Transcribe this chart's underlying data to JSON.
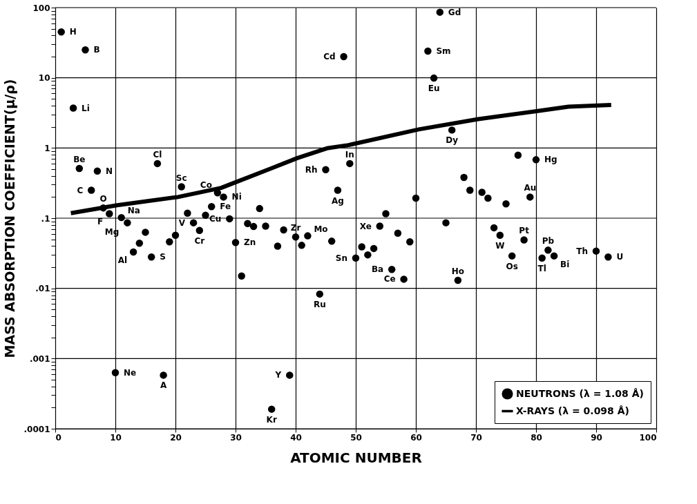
{
  "chart_data": {
    "type": "scatter",
    "xlabel": "ATOMIC NUMBER",
    "ylabel": "MASS ABSORPTION COEFFICIENT(μ/ρ)",
    "log": "y",
    "grid": true,
    "legend": "bottom right",
    "xlim": [
      0,
      100
    ],
    "xticks": [
      0,
      10,
      20,
      30,
      40,
      50,
      60,
      70,
      80,
      90,
      100
    ],
    "ylim": [
      0.0001,
      100
    ],
    "yticks": [
      {
        "value": 0.0001,
        "label": ".0001"
      },
      {
        "value": 0.0002,
        "label": null
      },
      {
        "value": 0.0003,
        "label": null
      },
      {
        "value": 0.0004,
        "label": null
      },
      {
        "value": 0.0005,
        "label": null
      },
      {
        "value": 0.0006,
        "label": null
      },
      {
        "value": 0.0007,
        "label": null
      },
      {
        "value": 0.0008,
        "label": null
      },
      {
        "value": 0.0009,
        "label": null
      },
      {
        "value": 0.001,
        "label": ".001"
      },
      {
        "value": 0.002,
        "label": null
      },
      {
        "value": 0.003,
        "label": null
      },
      {
        "value": 0.004,
        "label": null
      },
      {
        "value": 0.005,
        "label": null
      },
      {
        "value": 0.006,
        "label": null
      },
      {
        "value": 0.007,
        "label": null
      },
      {
        "value": 0.008,
        "label": null
      },
      {
        "value": 0.009,
        "label": null
      },
      {
        "value": 0.01,
        "label": ".01"
      },
      {
        "value": 0.02,
        "label": null
      },
      {
        "value": 0.03,
        "label": null
      },
      {
        "value": 0.04,
        "label": null
      },
      {
        "value": 0.05,
        "label": null
      },
      {
        "value": 0.06,
        "label": null
      },
      {
        "value": 0.07,
        "label": null
      },
      {
        "value": 0.08,
        "label": null
      },
      {
        "value": 0.09,
        "label": null
      },
      {
        "value": 0.1,
        "label": ".1"
      },
      {
        "value": 0.2,
        "label": null
      },
      {
        "value": 0.3,
        "label": null
      },
      {
        "value": 0.4,
        "label": null
      },
      {
        "value": 0.5,
        "label": null
      },
      {
        "value": 0.6,
        "label": null
      },
      {
        "value": 0.7,
        "label": null
      },
      {
        "value": 0.8,
        "label": null
      },
      {
        "value": 0.9,
        "label": null
      },
      1,
      {
        "value": 2,
        "label": null
      },
      {
        "value": 3,
        "label": null
      },
      {
        "value": 4,
        "label": null
      },
      {
        "value": 5,
        "label": null
      },
      {
        "value": 6,
        "label": null
      },
      {
        "value": 7,
        "label": null
      },
      {
        "value": 8,
        "label": null
      },
      {
        "value": 9,
        "label": null
      },
      10,
      {
        "value": 20,
        "label": null
      },
      {
        "value": 30,
        "label": null
      },
      {
        "value": 40,
        "label": null
      },
      {
        "value": 50,
        "label": null
      },
      {
        "value": 60,
        "label": null
      },
      {
        "value": 70,
        "label": null
      },
      {
        "value": 80,
        "label": null
      },
      {
        "value": 90,
        "label": null
      },
      100
    ],
    "series": [
      {
        "name": "NEUTRONS (λ = 1.08 Å)",
        "type": "scatter",
        "marker": "circle",
        "color": "#000000",
        "x": [
          1,
          3,
          4,
          5,
          6,
          7,
          8,
          9,
          10,
          11,
          12,
          13,
          14,
          15,
          16,
          17,
          18,
          19,
          20,
          21,
          22,
          23,
          24,
          25,
          26,
          27,
          28,
          29,
          30,
          31,
          32,
          33,
          34,
          35,
          36,
          37,
          38,
          39,
          40,
          41,
          42,
          44,
          45,
          46,
          47,
          48,
          49,
          50,
          51,
          52,
          53,
          54,
          55,
          56,
          57,
          58,
          59,
          60,
          62,
          63,
          64,
          65,
          66,
          67,
          68,
          69,
          71,
          72,
          73,
          74,
          75,
          76,
          77,
          78,
          79,
          80,
          81,
          82,
          83,
          90,
          92
        ],
        "values": [
          45,
          3.7,
          0.51,
          25,
          0.25,
          0.47,
          0.14,
          0.116,
          0.00063,
          0.102,
          0.086,
          0.033,
          0.044,
          0.063,
          0.028,
          0.6,
          0.00058,
          0.046,
          0.057,
          0.28,
          0.118,
          0.086,
          0.067,
          0.11,
          0.146,
          0.23,
          0.2,
          0.098,
          0.045,
          0.015,
          0.084,
          0.076,
          0.137,
          0.077,
          0.00019,
          0.04,
          0.068,
          0.00058,
          0.054,
          0.041,
          0.056,
          0.0083,
          0.49,
          0.047,
          0.25,
          20,
          0.6,
          0.027,
          0.039,
          0.03,
          0.037,
          0.077,
          0.116,
          0.0186,
          0.061,
          0.0135,
          0.046,
          0.193,
          24,
          9.9,
          86,
          0.086,
          1.8,
          0.013,
          0.38,
          0.25,
          0.234,
          0.193,
          0.073,
          0.057,
          0.16,
          0.029,
          0.79,
          0.049,
          0.2,
          0.68,
          0.027,
          0.035,
          0.029,
          0.034,
          0.028
        ]
      },
      {
        "name": "X-RAYS (λ = 0.098 Å)",
        "type": "line",
        "marker": "none",
        "line_style": "solid",
        "color": "#000000",
        "x": [
          2.6,
          10.3,
          20.4,
          27.6,
          30.4,
          35.9,
          40.3,
          45.2,
          48.8,
          60.5,
          70.4,
          79.9,
          85.4,
          92.5
        ],
        "values": [
          0.118,
          0.153,
          0.2,
          0.27,
          0.335,
          0.51,
          0.72,
          0.99,
          1.1,
          1.84,
          2.58,
          3.33,
          3.87,
          4.1
        ]
      }
    ],
    "annotations": [
      {
        "text": "H",
        "x": 1,
        "y": 45
      },
      {
        "text": "B",
        "x": 5,
        "y": 25
      },
      {
        "text": "Li",
        "x": 3,
        "y": 3.7
      },
      {
        "text": "Cd",
        "x": 48,
        "y": 20
      },
      {
        "text": "Gd",
        "x": 64,
        "y": 86
      },
      {
        "text": "Sm",
        "x": 62,
        "y": 24
      },
      {
        "text": "Eu",
        "x": 63,
        "y": 9.9
      },
      {
        "text": "Dy",
        "x": 66,
        "y": 1.8
      },
      {
        "text": "Be",
        "x": 4,
        "y": 0.51
      },
      {
        "text": "N",
        "x": 7,
        "y": 0.47
      },
      {
        "text": "Cl",
        "x": 17,
        "y": 0.6
      },
      {
        "text": "C",
        "x": 6,
        "y": 0.25
      },
      {
        "text": "O",
        "x": 8,
        "y": 0.14
      },
      {
        "text": "F",
        "x": 9,
        "y": 0.116
      },
      {
        "text": "Na",
        "x": 11,
        "y": 0.102
      },
      {
        "text": "Mg",
        "x": 12,
        "y": 0.086
      },
      {
        "text": "Sc",
        "x": 21,
        "y": 0.28
      },
      {
        "text": "Co",
        "x": 27,
        "y": 0.23
      },
      {
        "text": "Ni",
        "x": 28,
        "y": 0.2
      },
      {
        "text": "Fe",
        "x": 26,
        "y": 0.146
      },
      {
        "text": "Rh",
        "x": 45,
        "y": 0.49
      },
      {
        "text": "In",
        "x": 49,
        "y": 0.6
      },
      {
        "text": "Ag",
        "x": 47,
        "y": 0.25
      },
      {
        "text": "Hg",
        "x": 80,
        "y": 0.68
      },
      {
        "text": "Au",
        "x": 79,
        "y": 0.2
      },
      {
        "text": "Xe",
        "x": 54,
        "y": 0.077
      },
      {
        "text": "Sn",
        "x": 50,
        "y": 0.027
      },
      {
        "text": "Ba",
        "x": 56,
        "y": 0.0186
      },
      {
        "text": "Ce",
        "x": 58,
        "y": 0.0135
      },
      {
        "text": "Ho",
        "x": 67,
        "y": 0.013
      },
      {
        "text": "W",
        "x": 74,
        "y": 0.057
      },
      {
        "text": "Pt",
        "x": 78,
        "y": 0.049
      },
      {
        "text": "Os",
        "x": 76,
        "y": 0.029
      },
      {
        "text": "Pb",
        "x": 82,
        "y": 0.035
      },
      {
        "text": "Tl",
        "x": 81,
        "y": 0.027
      },
      {
        "text": "Bi",
        "x": 83,
        "y": 0.029
      },
      {
        "text": "Th",
        "x": 90,
        "y": 0.034
      },
      {
        "text": "U",
        "x": 92,
        "y": 0.028
      },
      {
        "text": "V",
        "x": 23,
        "y": 0.086
      },
      {
        "text": "Cr",
        "x": 24,
        "y": 0.067
      },
      {
        "text": "Cu",
        "x": 29,
        "y": 0.098
      },
      {
        "text": "Zn",
        "x": 30,
        "y": 0.045
      },
      {
        "text": "Zr",
        "x": 40,
        "y": 0.054
      },
      {
        "text": "Mo",
        "x": 42,
        "y": 0.056
      },
      {
        "text": "Al",
        "x": 13,
        "y": 0.033
      },
      {
        "text": "S",
        "x": 16,
        "y": 0.028
      },
      {
        "text": "Ru",
        "x": 44,
        "y": 0.0083
      },
      {
        "text": "Ne",
        "x": 10,
        "y": 0.00063
      },
      {
        "text": "A",
        "x": 18,
        "y": 0.00058
      },
      {
        "text": "Y",
        "x": 39,
        "y": 0.00058
      },
      {
        "text": "Kr",
        "x": 36,
        "y": 0.00019
      }
    ]
  }
}
